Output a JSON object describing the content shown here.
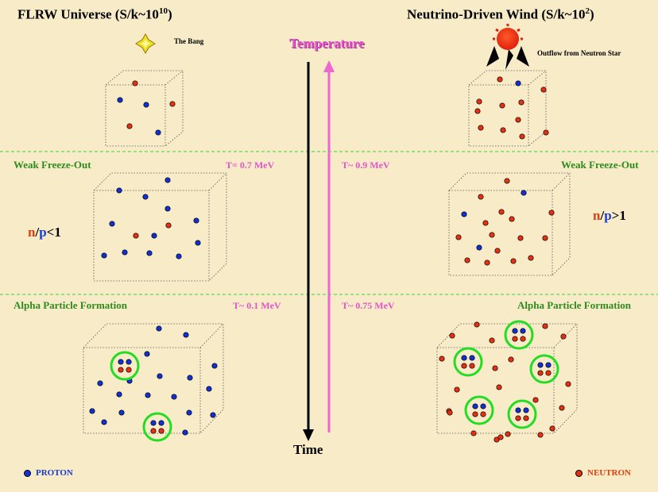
{
  "left_title": {
    "text": "FLRW Universe  (S/k~10",
    "sup": "10",
    "close": ")"
  },
  "right_title": {
    "text": "Neutrino-Driven Wind  (S/k~10",
    "sup": "2",
    "close": ")"
  },
  "bang_label": "The Bang",
  "outflow_label": "Outflow from Neutron Star",
  "temperature_label": "Temperature",
  "time_label": "Time",
  "stage_weak": "Weak Freeze-Out",
  "stage_alpha": "Alpha Particle Formation",
  "temps": {
    "left_weak": "T= 0.7 MeV",
    "right_weak": "T~ 0.9 MeV",
    "left_alpha": "T~ 0.1 MeV",
    "right_alpha": "T~ 0.75 MeV"
  },
  "left_ratio": {
    "n": "n",
    "slash": "/",
    "p": "p",
    "rest": "<1"
  },
  "right_ratio": {
    "n": "n",
    "slash": "/",
    "p": "p",
    "rest": ">1"
  },
  "legend": {
    "proton": "PROTON",
    "neutron": "NEUTRON"
  },
  "colors": {
    "proton": "#1030d8",
    "neutron": "#e83010",
    "stage": "#2e8b1e",
    "temperature": "#e455c8",
    "divider": "#3cd03c",
    "alpha_ring": "#22dd22"
  }
}
